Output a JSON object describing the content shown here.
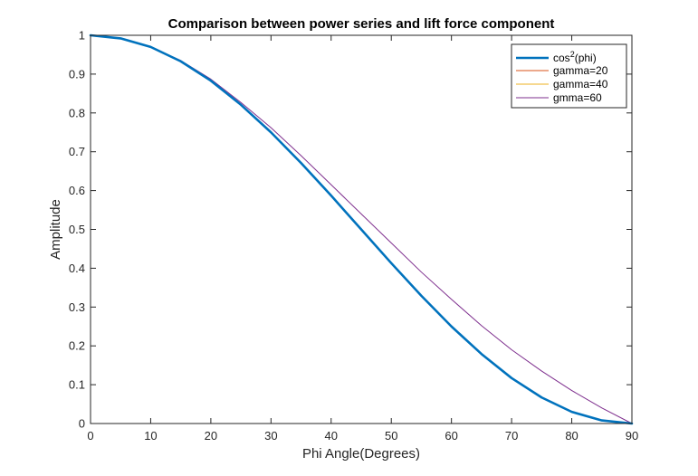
{
  "chart_data": {
    "type": "line",
    "title": "Comparison between power series and lift force component",
    "xlabel": "Phi Angle(Degrees)",
    "ylabel": "Amplitude",
    "xlim": [
      0,
      90
    ],
    "ylim": [
      0,
      1
    ],
    "xticks": [
      "0",
      "10",
      "20",
      "30",
      "40",
      "50",
      "60",
      "70",
      "80",
      "90"
    ],
    "yticks": [
      "0",
      "0.1",
      "0.2",
      "0.3",
      "0.4",
      "0.5",
      "0.6",
      "0.7",
      "0.8",
      "0.9",
      "1"
    ],
    "grid": false,
    "legend_position": "top-right",
    "x": [
      0,
      5,
      10,
      15,
      20,
      25,
      30,
      35,
      40,
      45,
      50,
      55,
      60,
      65,
      70,
      75,
      80,
      85,
      90
    ],
    "series": [
      {
        "name": "cos",
        "name_superscript": "2",
        "name_suffix": "(phi)",
        "color": "#0072BD",
        "values": [
          1.0,
          0.992,
          0.97,
          0.933,
          0.883,
          0.821,
          0.75,
          0.671,
          0.587,
          0.5,
          0.413,
          0.329,
          0.25,
          0.179,
          0.117,
          0.067,
          0.03,
          0.008,
          0.0
        ]
      },
      {
        "name": "gamma=20",
        "color": "#D95319",
        "values": [
          1.0,
          0.992,
          0.97,
          0.933,
          0.883,
          0.821,
          0.75,
          0.671,
          0.587,
          0.5,
          0.413,
          0.329,
          0.25,
          0.179,
          0.117,
          0.067,
          0.03,
          0.008,
          0.0
        ]
      },
      {
        "name": "gamma=40",
        "color": "#EDB120",
        "values": [
          1.0,
          0.992,
          0.97,
          0.933,
          0.883,
          0.821,
          0.75,
          0.671,
          0.587,
          0.5,
          0.413,
          0.329,
          0.25,
          0.179,
          0.117,
          0.067,
          0.03,
          0.008,
          0.0
        ]
      },
      {
        "name": "gmma=60",
        "color": "#7E2F8E",
        "values": [
          1.0,
          0.992,
          0.97,
          0.935,
          0.887,
          0.827,
          0.762,
          0.69,
          0.615,
          0.54,
          0.465,
          0.39,
          0.32,
          0.252,
          0.19,
          0.135,
          0.085,
          0.04,
          0.0
        ]
      }
    ]
  }
}
